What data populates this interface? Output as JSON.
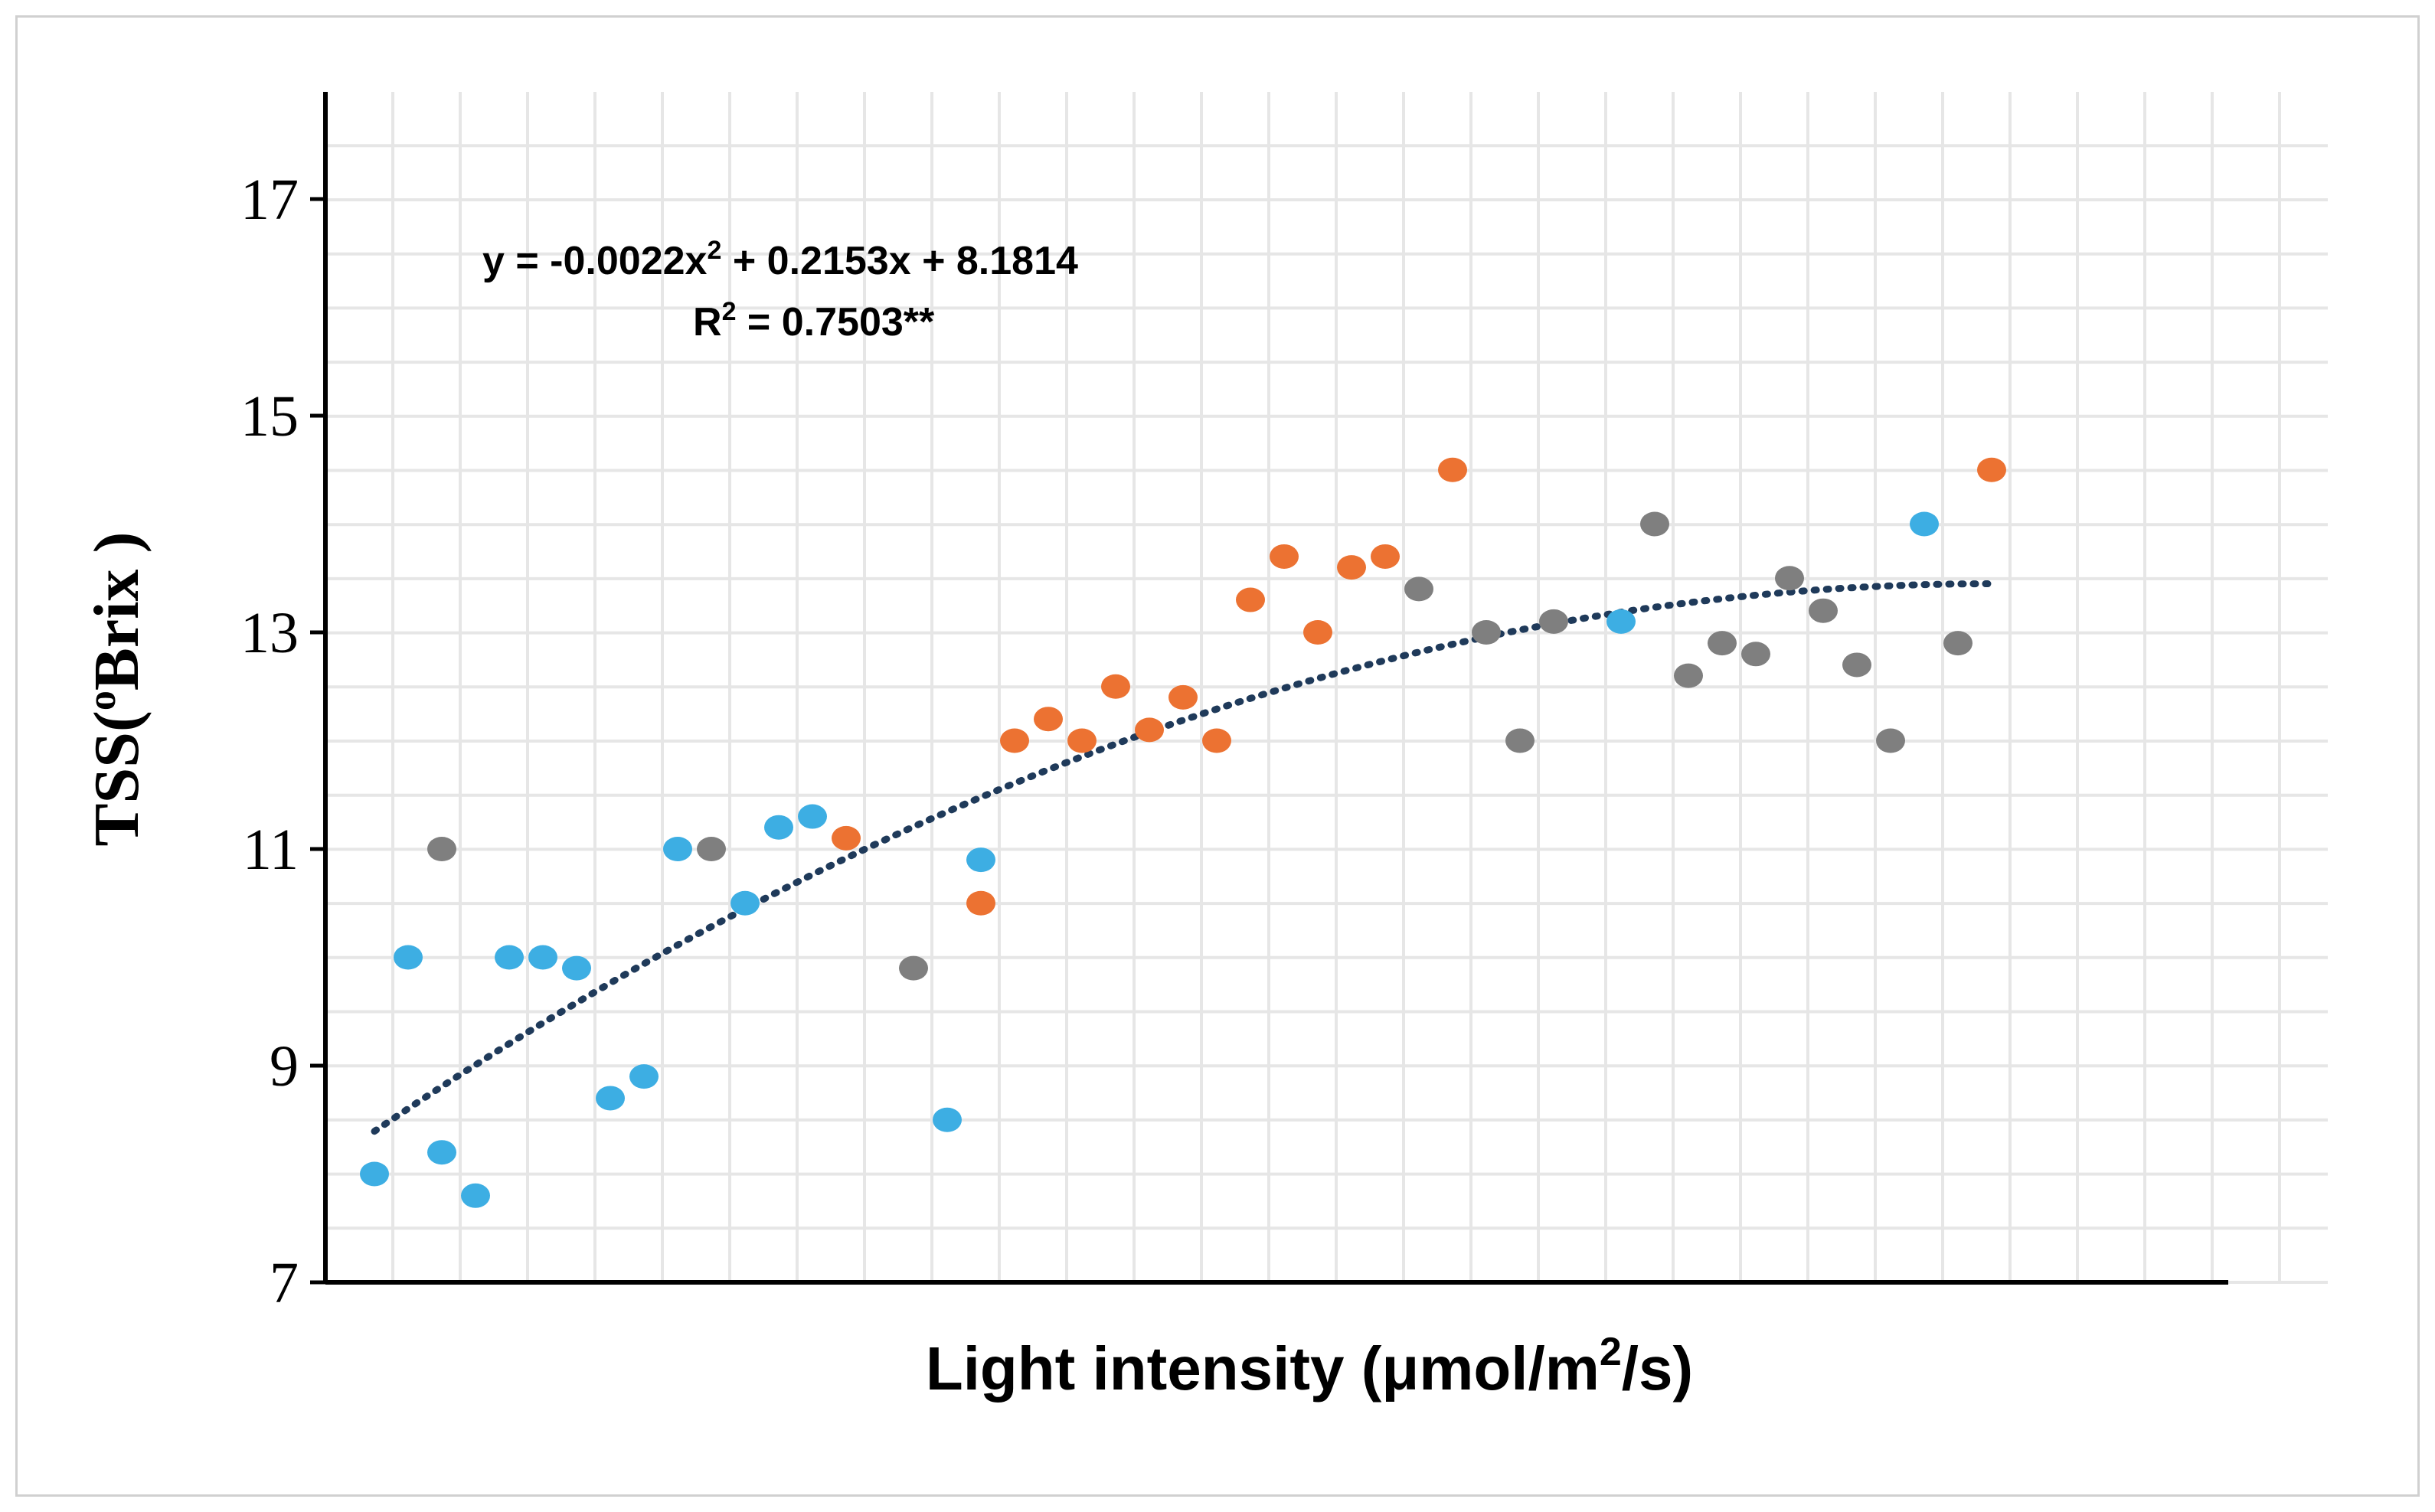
{
  "chart_data": {
    "type": "scatter",
    "title": "",
    "xlabel": "Light intensity (μmol/m",
    "xlabel_sup": "2",
    "xlabel_end": "/s)",
    "ylabel": "TSS(",
    "ylabel_sup": "o",
    "ylabel_end": "Brix )",
    "ylim": [
      7,
      18
    ],
    "yticks": [
      "7",
      "9",
      "11",
      "13",
      "15",
      "17"
    ],
    "xlim": [
      0,
      58
    ],
    "grid": true,
    "colors": {
      "blue": "#3daee3",
      "orange": "#ec7232",
      "gray": "#7f7f7f",
      "trend": "#1f3a5a"
    },
    "equation": {
      "line1_a": "y = -0.0022x",
      "line1_sup": "2",
      "line1_b": " + 0.2153x + 8.1814",
      "line2_a": "R",
      "line2_sup": "2",
      "line2_b": " = 0.7503**"
    },
    "trendline": {
      "a": -0.0022,
      "b": 0.2153,
      "c": 8.1814,
      "x_from": 1,
      "x_to": 49
    },
    "series": [
      {
        "name": "blue",
        "color": "#3daee3",
        "points": [
          [
            1,
            8.0
          ],
          [
            2,
            10.0
          ],
          [
            3,
            8.2
          ],
          [
            4,
            7.8
          ],
          [
            5,
            10.0
          ],
          [
            6,
            10.0
          ],
          [
            7,
            9.9
          ],
          [
            8,
            8.7
          ],
          [
            9,
            8.9
          ],
          [
            10,
            11.0
          ],
          [
            12,
            10.5
          ],
          [
            13,
            11.2
          ],
          [
            14,
            11.3
          ],
          [
            18,
            8.5
          ],
          [
            19,
            10.9
          ],
          [
            38,
            13.1
          ],
          [
            47,
            14.0
          ]
        ]
      },
      {
        "name": "orange",
        "color": "#ec7232",
        "points": [
          [
            15,
            11.1
          ],
          [
            19,
            10.5
          ],
          [
            20,
            12.0
          ],
          [
            21,
            12.2
          ],
          [
            22,
            12.0
          ],
          [
            23,
            12.5
          ],
          [
            24,
            12.1
          ],
          [
            25,
            12.4
          ],
          [
            26,
            12.0
          ],
          [
            27,
            13.3
          ],
          [
            28,
            13.7
          ],
          [
            29,
            13.0
          ],
          [
            30,
            13.6
          ],
          [
            31,
            13.7
          ],
          [
            33,
            14.5
          ],
          [
            49,
            14.5
          ]
        ]
      },
      {
        "name": "gray",
        "color": "#7f7f7f",
        "points": [
          [
            3,
            11.0
          ],
          [
            11,
            11.0
          ],
          [
            17,
            9.9
          ],
          [
            32,
            13.4
          ],
          [
            34,
            13.0
          ],
          [
            35,
            12.0
          ],
          [
            36,
            13.1
          ],
          [
            39,
            14.0
          ],
          [
            40,
            12.6
          ],
          [
            41,
            12.9
          ],
          [
            42,
            12.8
          ],
          [
            43,
            13.5
          ],
          [
            44,
            13.2
          ],
          [
            45,
            12.7
          ],
          [
            46,
            12.0
          ],
          [
            48,
            12.9
          ]
        ]
      }
    ]
  }
}
